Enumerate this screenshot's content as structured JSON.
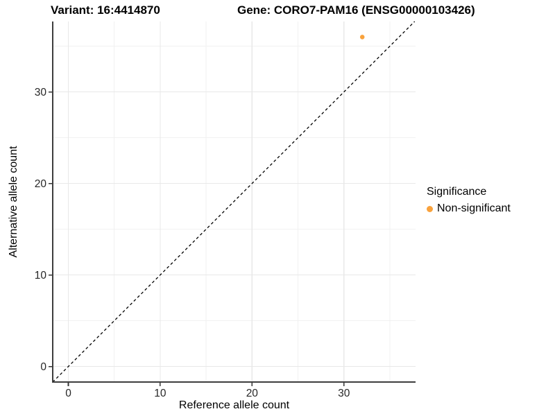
{
  "chart_data": {
    "type": "scatter",
    "titles": [
      "Variant: 16:4414870",
      "Gene: CORO7-PAM16 (ENSG00000103426)"
    ],
    "xlabel": "Reference allele count",
    "ylabel": "Alternative allele count",
    "xlim": [
      -1.7,
      37.8
    ],
    "ylim": [
      -1.7,
      37.7
    ],
    "x_ticks": [
      0,
      10,
      20,
      30
    ],
    "y_ticks": [
      0,
      10,
      20,
      30
    ],
    "x_minor_gridlines": [
      5,
      15,
      25,
      35
    ],
    "y_minor_gridlines": [
      5,
      15,
      25,
      35
    ],
    "grid": "on",
    "identity_line": {
      "style": "dashed",
      "equation": "y = x",
      "color": "#000000"
    },
    "series": [
      {
        "name": "Non-significant",
        "color": "#F9A23C",
        "points": [
          {
            "x": 32,
            "y": 36
          }
        ]
      }
    ],
    "legend": {
      "title": "Significance",
      "position": "right",
      "entries": [
        {
          "label": "Non-significant",
          "color": "#F9A23C"
        }
      ]
    }
  },
  "colors": {
    "background": "#ffffff",
    "axis_line": "#3d3d3d",
    "tick_mark": "#333333",
    "tick_label": "#262626",
    "grid_major": "#e8e8e8",
    "grid_minor": "#f1f1f1",
    "point_orange": "#F9A23C"
  }
}
